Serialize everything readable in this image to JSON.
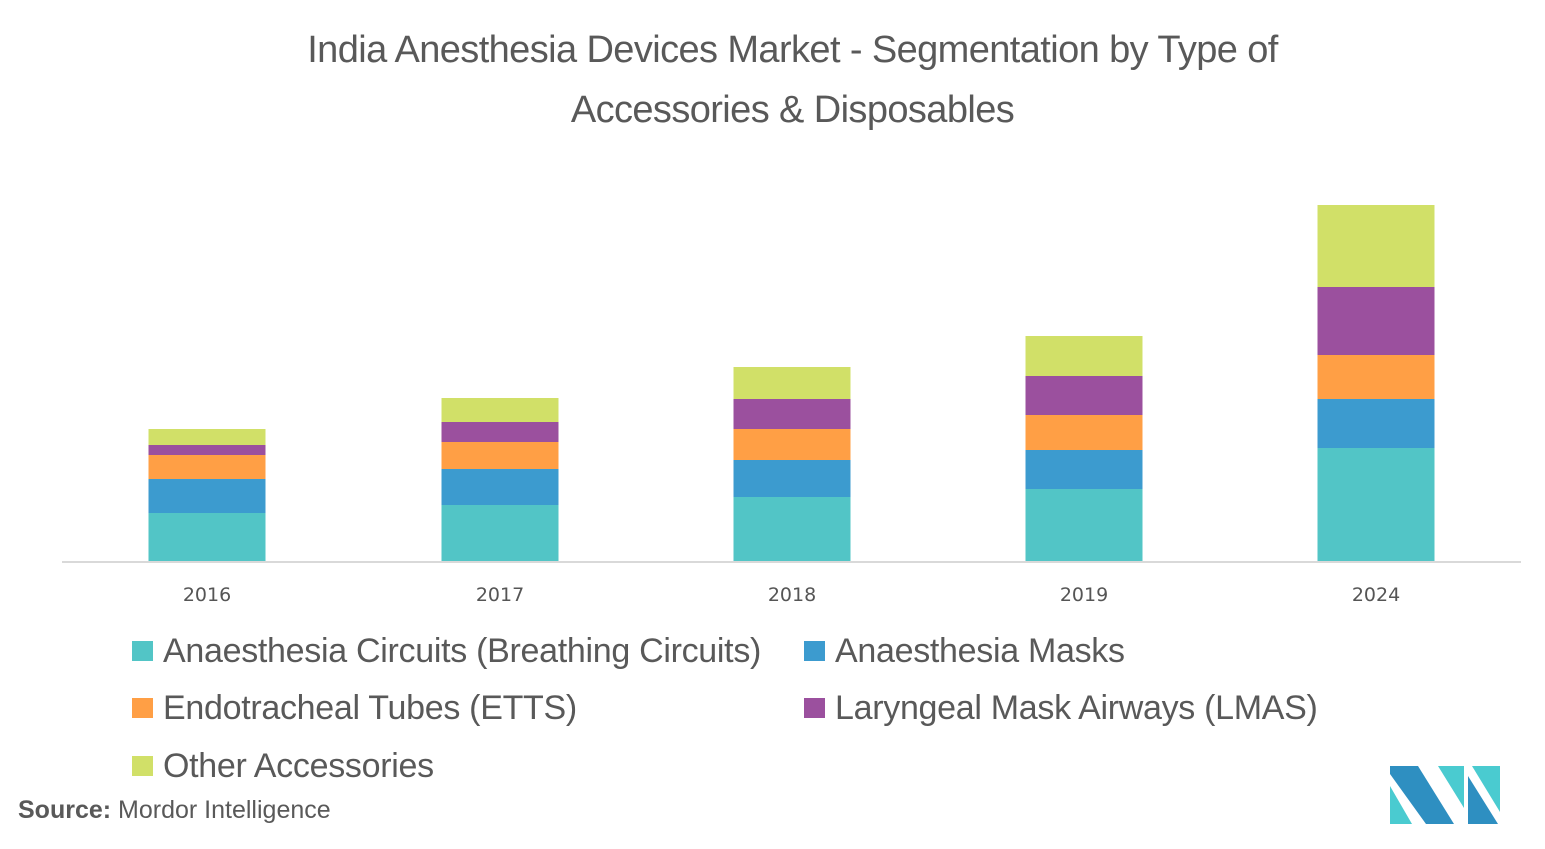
{
  "title": {
    "line1": "India Anesthesia Devices Market -  Segmentation by Type of",
    "line2": "Accessories & Disposables"
  },
  "chart_data": {
    "type": "bar",
    "stacked": true,
    "title": "India Anesthesia Devices Market -  Segmentation by Type of Accessories & Disposables",
    "xlabel": "",
    "ylabel": "",
    "y_axis_visible": false,
    "grid": false,
    "value_units": "relative (no y-axis shown; estimated from bar heights)",
    "categories": [
      "2016",
      "2017",
      "2018",
      "2019",
      "2024"
    ],
    "ylim": [
      0,
      411
    ],
    "legend_position": "bottom",
    "series": [
      {
        "name": "Anaesthesia Circuits (Breathing Circuits)",
        "color": "#52C5C6",
        "values": [
          48,
          56,
          64,
          72,
          113
        ]
      },
      {
        "name": "Anaesthesia Masks",
        "color": "#3C9BCF",
        "values": [
          34,
          36,
          37,
          39,
          49
        ]
      },
      {
        "name": "Endotracheal Tubes (ETTS)",
        "color": "#FF9F45",
        "values": [
          24,
          27,
          31,
          35,
          44
        ]
      },
      {
        "name": "Laryngeal Mask Airways (LMAS)",
        "color": "#9B509E",
        "values": [
          10,
          20,
          30,
          39,
          68
        ]
      },
      {
        "name": "Other Accessories",
        "color": "#D1E068",
        "values": [
          16,
          24,
          32,
          40,
          82
        ]
      }
    ]
  },
  "source": {
    "label": "Source:",
    "text": " Mordor Intelligence"
  },
  "logo": {
    "icon": "mordor-intelligence-logo-icon",
    "colors": [
      "#2E8FC1",
      "#4ACBD0"
    ]
  },
  "axis_color": "#D9D9D9"
}
